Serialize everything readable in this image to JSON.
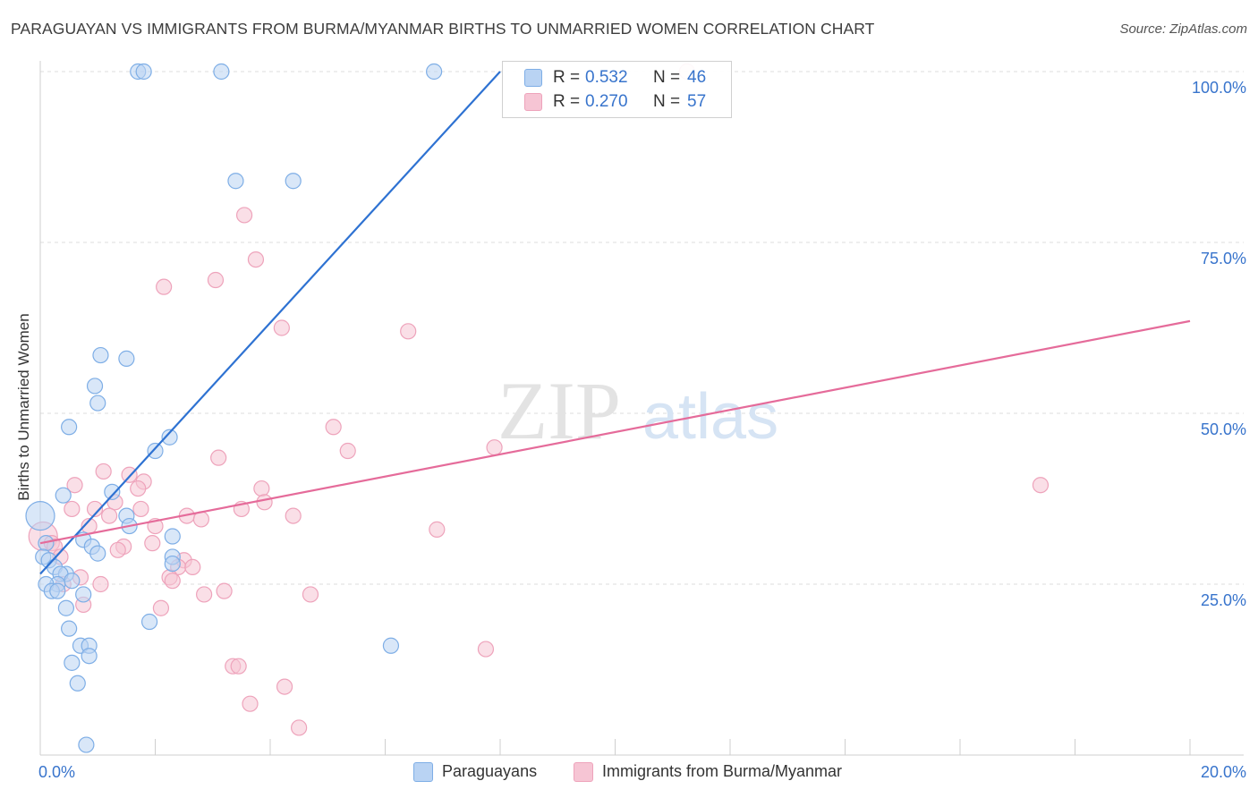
{
  "title": "PARAGUAYAN VS IMMIGRANTS FROM BURMA/MYANMAR BIRTHS TO UNMARRIED WOMEN CORRELATION CHART",
  "source": "Source: ZipAtlas.com",
  "watermark": {
    "zip": "ZIP",
    "atlas": "atlas"
  },
  "colors": {
    "blue_fill": "#b9d3f3",
    "blue_stroke": "#7eaee6",
    "blue_line": "#2e72d2",
    "pink_fill": "#f6c5d4",
    "pink_stroke": "#eea3bb",
    "pink_line": "#e56b9a",
    "value_text": "#3874cc",
    "grid": "#dedede"
  },
  "legend": {
    "rows": [
      {
        "r_label": "R =",
        "r_value": "0.532",
        "n_label": "N =",
        "n_value": "46"
      },
      {
        "r_label": "R =",
        "r_value": "0.270",
        "n_label": "N =",
        "n_value": "57"
      }
    ]
  },
  "chart_data": {
    "type": "scatter",
    "title": "PARAGUAYAN VS IMMIGRANTS FROM BURMA/MYANMAR BIRTHS TO UNMARRIED WOMEN CORRELATION CHART",
    "xlabel": "",
    "ylabel": "Births to Unmarried Women",
    "xlim": [
      0,
      20
    ],
    "ylim": [
      0,
      100
    ],
    "x_tick_labels": {
      "left": "0.0%",
      "right": "20.0%"
    },
    "y_tick_labels": [
      "100.0%",
      "75.0%",
      "50.0%",
      "25.0%"
    ],
    "y_tick_values": [
      100,
      75,
      50,
      25
    ],
    "grid": true,
    "legend_position": "top-center",
    "series": [
      {
        "name": "Paraguayans",
        "color": "#b9d3f3",
        "trend": {
          "x": [
            0,
            8.0
          ],
          "y": [
            26.5,
            100.0
          ]
        },
        "points": [
          [
            1.7,
            100
          ],
          [
            1.8,
            100
          ],
          [
            3.15,
            100
          ],
          [
            6.85,
            100
          ],
          [
            3.4,
            84
          ],
          [
            4.4,
            84
          ],
          [
            1.05,
            58.5
          ],
          [
            1.5,
            58
          ],
          [
            0.95,
            54
          ],
          [
            1.0,
            51.5
          ],
          [
            0.5,
            48
          ],
          [
            2.25,
            46.5
          ],
          [
            2.0,
            44.5
          ],
          [
            0.4,
            38
          ],
          [
            1.25,
            38.5
          ],
          [
            0.0,
            35
          ],
          [
            1.5,
            35
          ],
          [
            1.55,
            33.5
          ],
          [
            0.75,
            31.5
          ],
          [
            2.3,
            32
          ],
          [
            0.9,
            30.5
          ],
          [
            1.0,
            29.5
          ],
          [
            0.1,
            31
          ],
          [
            0.05,
            29
          ],
          [
            0.15,
            28.5
          ],
          [
            0.25,
            27.5
          ],
          [
            0.45,
            26.5
          ],
          [
            0.35,
            26.5
          ],
          [
            0.55,
            25.5
          ],
          [
            0.3,
            25
          ],
          [
            0.1,
            25
          ],
          [
            0.2,
            24
          ],
          [
            0.3,
            24
          ],
          [
            0.75,
            23.5
          ],
          [
            2.3,
            29
          ],
          [
            0.45,
            21.5
          ],
          [
            1.9,
            19.5
          ],
          [
            0.5,
            18.5
          ],
          [
            0.7,
            16
          ],
          [
            0.85,
            16
          ],
          [
            0.55,
            13.5
          ],
          [
            0.85,
            14.5
          ],
          [
            6.1,
            16
          ],
          [
            0.65,
            10.5
          ],
          [
            0.8,
            1.5
          ],
          [
            2.3,
            28
          ]
        ]
      },
      {
        "name": "Immigrants from Burma/Myanmar",
        "color": "#f6c5d4",
        "trend": {
          "x": [
            0,
            20
          ],
          "y": [
            31.0,
            63.5
          ]
        },
        "points": [
          [
            11.25,
            100
          ],
          [
            3.55,
            79
          ],
          [
            3.75,
            72.5
          ],
          [
            3.05,
            69.5
          ],
          [
            2.15,
            68.5
          ],
          [
            4.2,
            62.5
          ],
          [
            6.4,
            62
          ],
          [
            5.1,
            48
          ],
          [
            5.35,
            44.5
          ],
          [
            7.9,
            45
          ],
          [
            3.1,
            43.5
          ],
          [
            17.4,
            39.5
          ],
          [
            1.1,
            41.5
          ],
          [
            1.55,
            41
          ],
          [
            0.6,
            39.5
          ],
          [
            1.8,
            40
          ],
          [
            1.7,
            39
          ],
          [
            3.85,
            39
          ],
          [
            1.3,
            37
          ],
          [
            0.55,
            36
          ],
          [
            0.95,
            36
          ],
          [
            3.5,
            36
          ],
          [
            3.9,
            37
          ],
          [
            1.75,
            36
          ],
          [
            4.4,
            35
          ],
          [
            2.55,
            35
          ],
          [
            1.2,
            35
          ],
          [
            2.8,
            34.5
          ],
          [
            0.85,
            33.5
          ],
          [
            2.0,
            33.5
          ],
          [
            6.9,
            33
          ],
          [
            0.05,
            32
          ],
          [
            0.2,
            31
          ],
          [
            0.25,
            30.5
          ],
          [
            1.45,
            30.5
          ],
          [
            1.35,
            30
          ],
          [
            1.95,
            31
          ],
          [
            0.35,
            29
          ],
          [
            2.5,
            28.5
          ],
          [
            2.4,
            27.5
          ],
          [
            2.65,
            27.5
          ],
          [
            0.7,
            26
          ],
          [
            1.05,
            25
          ],
          [
            2.25,
            26
          ],
          [
            2.3,
            25.5
          ],
          [
            0.4,
            25
          ],
          [
            3.2,
            24
          ],
          [
            2.85,
            23.5
          ],
          [
            4.7,
            23.5
          ],
          [
            0.75,
            22
          ],
          [
            2.1,
            21.5
          ],
          [
            7.75,
            15.5
          ],
          [
            3.35,
            13
          ],
          [
            3.45,
            13
          ],
          [
            4.25,
            10
          ],
          [
            3.65,
            7.5
          ],
          [
            4.5,
            4
          ]
        ]
      }
    ]
  },
  "bottom_legend": [
    {
      "label": "Paraguayans"
    },
    {
      "label": "Immigrants from Burma/Myanmar"
    }
  ]
}
